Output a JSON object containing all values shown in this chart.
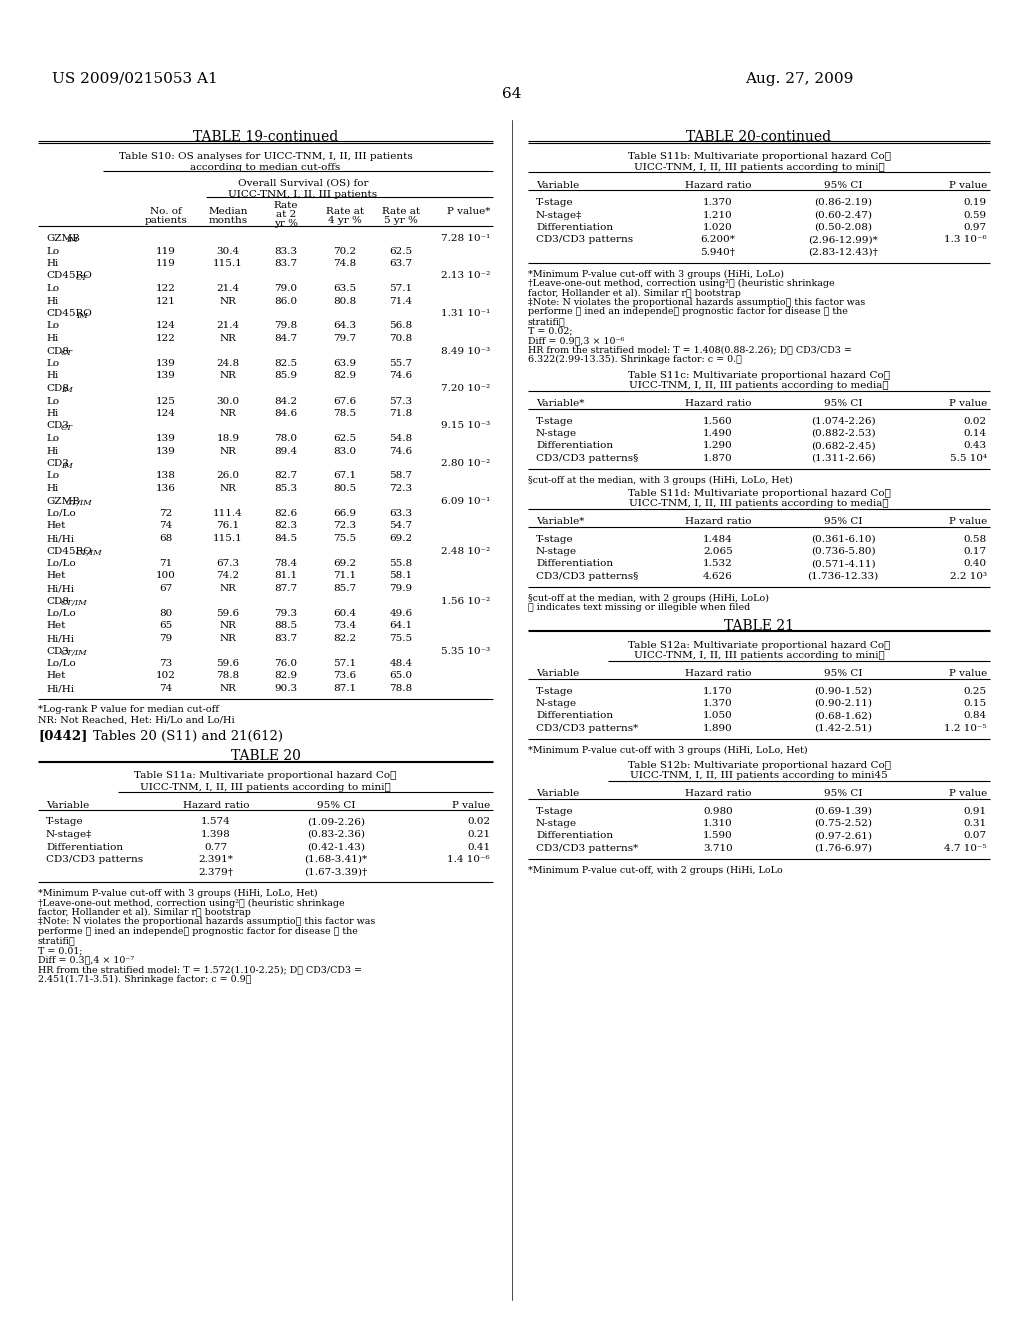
{
  "page_header_left": "US 2009/0215053 A1",
  "page_header_right": "Aug. 27, 2009",
  "page_number": "64",
  "background_color": "#ffffff"
}
